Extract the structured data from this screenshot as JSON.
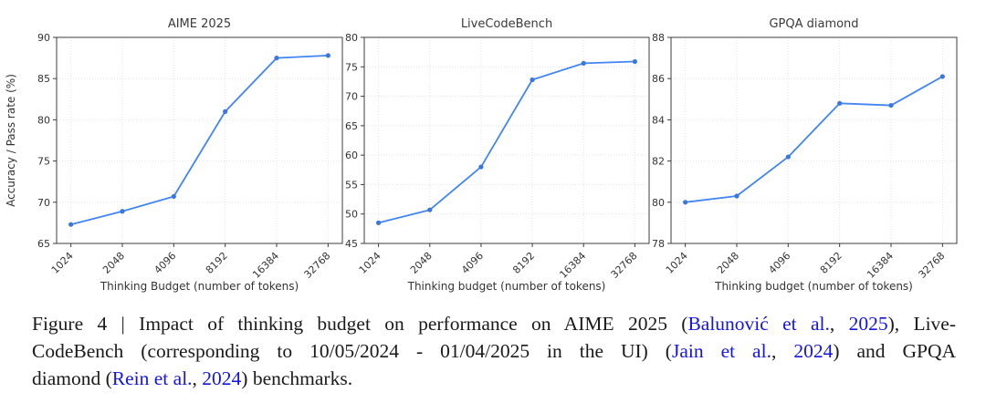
{
  "style": {
    "background": "#ffffff",
    "line_color": "#4285f4",
    "marker_color": "#3b76dd",
    "grid_color": "#e4e4e4",
    "spine_color": "#3d3d3d",
    "tick_color": "#333333",
    "title_color": "#3a3a3a",
    "link_color": "#1515e0",
    "text_color": "#1a1a1a"
  },
  "chart_data": [
    {
      "type": "line",
      "title": "AIME 2025",
      "categories": [
        "1024",
        "2048",
        "4096",
        "8192",
        "16384",
        "32768"
      ],
      "values": [
        67.3,
        68.9,
        70.7,
        81.0,
        87.5,
        87.8
      ],
      "xlabel": "Thinking Budget (number of tokens)",
      "ylabel": "Accuracy / Pass rate (%)",
      "ylim": [
        65,
        90
      ],
      "yticks": [
        65,
        70,
        75,
        80,
        85,
        90
      ],
      "grid": true,
      "legend": "none",
      "marker": "point"
    },
    {
      "type": "line",
      "title": "LiveCodeBench",
      "categories": [
        "1024",
        "2048",
        "4096",
        "8192",
        "16384",
        "32768"
      ],
      "values": [
        48.5,
        50.7,
        58.0,
        72.8,
        75.6,
        75.9
      ],
      "xlabel": "Thinking budget (number of tokens)",
      "ylabel": "",
      "ylim": [
        45,
        80
      ],
      "yticks": [
        45,
        50,
        55,
        60,
        65,
        70,
        75,
        80
      ],
      "grid": true,
      "legend": "none",
      "marker": "point"
    },
    {
      "type": "line",
      "title": "GPQA diamond",
      "categories": [
        "1024",
        "2048",
        "4096",
        "8192",
        "16384",
        "32768"
      ],
      "values": [
        80.0,
        80.3,
        82.2,
        84.8,
        84.7,
        86.1
      ],
      "xlabel": "Thinking budget (number of tokens)",
      "ylabel": "",
      "ylim": [
        78,
        88
      ],
      "yticks": [
        78,
        80,
        82,
        84,
        86,
        88
      ],
      "grid": true,
      "legend": "none",
      "marker": "point"
    }
  ],
  "figure": {
    "caption": {
      "lines": [
        {
          "justify": true,
          "segments": [
            {
              "text": "Figure 4 | Impact of thinking budget on performance on AIME 2025 ("
            },
            {
              "text": "Balunović et al.",
              "link": true
            },
            {
              "text": ", "
            },
            {
              "text": "2025",
              "link": true
            },
            {
              "text": "), Live-"
            }
          ]
        },
        {
          "justify": true,
          "segments": [
            {
              "text": "CodeBench (corresponding to 10/05/2024 - 01/04/2025 in the UI) ("
            },
            {
              "text": "Jain et al.",
              "link": true
            },
            {
              "text": ", "
            },
            {
              "text": "2024",
              "link": true
            },
            {
              "text": ") and GPQA"
            }
          ]
        },
        {
          "justify": false,
          "segments": [
            {
              "text": "diamond ("
            },
            {
              "text": "Rein et al.",
              "link": true
            },
            {
              "text": ", "
            },
            {
              "text": "2024",
              "link": true
            },
            {
              "text": ") benchmarks."
            }
          ]
        }
      ]
    }
  }
}
